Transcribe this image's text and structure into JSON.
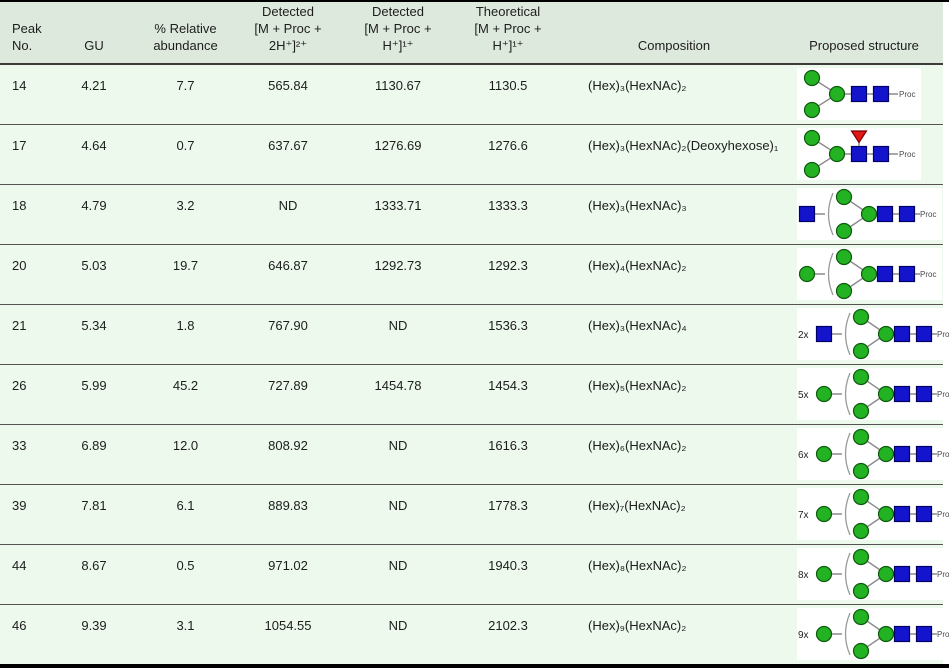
{
  "colors": {
    "page_bg": "#ffffff",
    "header_bg": "#dee9dd",
    "row_bg": "#ecf9ec",
    "top_bar": "#000000",
    "bottom_bar": "#000000",
    "separator": "#545454",
    "text": "#1d1d1d",
    "hex_green": "#22b222",
    "hex_stroke": "#0e5a0e",
    "hexnac_blue": "#1414cc",
    "hexnac_stroke": "#000066",
    "fucose_red": "#e01818",
    "fucose_stroke": "#7a0000",
    "linker_grey": "#8c8c8c",
    "bracket_grey": "#9a9a9a",
    "proc_grey": "#4a4a4a",
    "structure_bg": "#ffffff"
  },
  "structure_labels": {
    "proc": "Proc"
  },
  "table": {
    "columns": [
      {
        "key": "peak",
        "label": "Peak\nNo.",
        "align": "left"
      },
      {
        "key": "gu",
        "label": "GU",
        "align": "center"
      },
      {
        "key": "ab",
        "label": "% Relative\nabundance",
        "align": "center"
      },
      {
        "key": "m2h",
        "label": "Detected\n[M + Proc +\n2H⁺]²⁺",
        "align": "center"
      },
      {
        "key": "m1h",
        "label": "Detected\n[M + Proc +\nH⁺]¹⁺",
        "align": "center"
      },
      {
        "key": "th",
        "label": "Theoretical\n[M + Proc +\nH⁺]¹⁺",
        "align": "center"
      },
      {
        "key": "comp",
        "label": "Composition",
        "align": "center",
        "data_align": "left"
      },
      {
        "key": "st",
        "label": "Proposed structure",
        "align": "center",
        "data_align": "left"
      }
    ],
    "rows": [
      {
        "peak": "14",
        "gu": "4.21",
        "ab": "7.7",
        "m2h": "565.84",
        "m1h": "1130.67",
        "th": "1130.5",
        "comp": "(Hex)₃(HexNAc)₂",
        "st": {
          "kind": "core",
          "fucose": false
        }
      },
      {
        "peak": "17",
        "gu": "4.64",
        "ab": "0.7",
        "m2h": "637.67",
        "m1h": "1276.69",
        "th": "1276.6",
        "comp": "(Hex)₃(HexNAc)₂(Deoxyhexose)₁",
        "st": {
          "kind": "core",
          "fucose": true
        }
      },
      {
        "peak": "18",
        "gu": "4.79",
        "ab": "3.2",
        "m2h": "ND",
        "m1h": "1333.71",
        "th": "1333.3",
        "comp": "(Hex)₃(HexNAc)₃",
        "st": {
          "kind": "bracket",
          "extra": "hexnac",
          "mult": ""
        }
      },
      {
        "peak": "20",
        "gu": "5.03",
        "ab": "19.7",
        "m2h": "646.87",
        "m1h": "1292.73",
        "th": "1292.3",
        "comp": "(Hex)₄(HexNAc)₂",
        "st": {
          "kind": "bracket",
          "extra": "hex",
          "mult": ""
        }
      },
      {
        "peak": "21",
        "gu": "5.34",
        "ab": "1.8",
        "m2h": "767.90",
        "m1h": "ND",
        "th": "1536.3",
        "comp": "(Hex)₃(HexNAc)₄",
        "st": {
          "kind": "bracket",
          "extra": "hexnac",
          "mult": "2x"
        }
      },
      {
        "peak": "26",
        "gu": "5.99",
        "ab": "45.2",
        "m2h": "727.89",
        "m1h": "1454.78",
        "th": "1454.3",
        "comp": "(Hex)₅(HexNAc)₂",
        "st": {
          "kind": "bracket",
          "extra": "hex",
          "mult": "5x"
        }
      },
      {
        "peak": "33",
        "gu": "6.89",
        "ab": "12.0",
        "m2h": "808.92",
        "m1h": "ND",
        "th": "1616.3",
        "comp": "(Hex)₆(HexNAc)₂",
        "st": {
          "kind": "bracket",
          "extra": "hex",
          "mult": "6x"
        }
      },
      {
        "peak": "39",
        "gu": "7.81",
        "ab": "6.1",
        "m2h": "889.83",
        "m1h": "ND",
        "th": "1778.3",
        "comp": "(Hex)₇(HexNAc)₂",
        "st": {
          "kind": "bracket",
          "extra": "hex",
          "mult": "7x"
        }
      },
      {
        "peak": "44",
        "gu": "8.67",
        "ab": "0.5",
        "m2h": "971.02",
        "m1h": "ND",
        "th": "1940.3",
        "comp": "(Hex)₈(HexNAc)₂",
        "st": {
          "kind": "bracket",
          "extra": "hex",
          "mult": "8x"
        }
      },
      {
        "peak": "46",
        "gu": "9.39",
        "ab": "3.1",
        "m2h": "1054.55",
        "m1h": "ND",
        "th": "2102.3",
        "comp": "(Hex)₉(HexNAc)₂",
        "st": {
          "kind": "bracket",
          "extra": "hex",
          "mult": "9x"
        }
      }
    ]
  }
}
